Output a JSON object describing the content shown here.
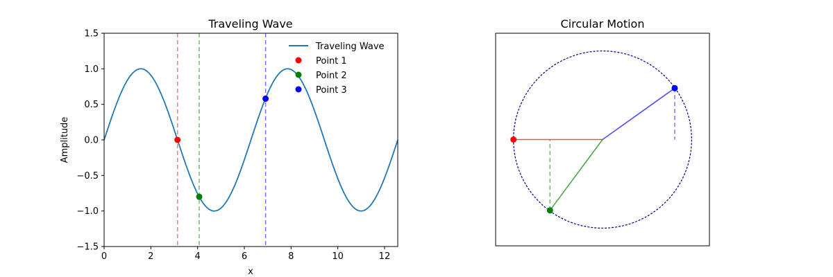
{
  "chart_data": [
    {
      "type": "line",
      "title": "Traveling Wave",
      "xlabel": "x",
      "ylabel": "Amplitude",
      "xlim": [
        0,
        12.566
      ],
      "ylim": [
        -1.5,
        1.5
      ],
      "xticks": [
        0,
        2,
        4,
        6,
        8,
        10,
        12
      ],
      "xtick_labels": [
        "0",
        "2",
        "4",
        "6",
        "8",
        "10",
        "12"
      ],
      "yticks": [
        -1.5,
        -1.0,
        -0.5,
        0.0,
        0.5,
        1.0,
        1.5
      ],
      "ytick_labels": [
        "−1.5",
        "−1.0",
        "−0.5",
        "0.0",
        "0.5",
        "1.0",
        "1.5"
      ],
      "series": [
        {
          "name": "Traveling Wave",
          "function": "sin(x)",
          "x_range": [
            0,
            12.566
          ],
          "color": "#1f77b4"
        }
      ],
      "points": [
        {
          "name": "Point 1",
          "x": 3.14,
          "y": 0.0,
          "color": "#ff0000",
          "vline_color": "#ff0000"
        },
        {
          "name": "Point 2",
          "x": 4.07,
          "y": -0.8,
          "color": "#008000",
          "vline_color": "#008000"
        },
        {
          "name": "Point 3",
          "x": 6.91,
          "y": 0.58,
          "color": "#0000ff",
          "vline_color": "#0000ff"
        }
      ],
      "legend": {
        "position": "top-right",
        "entries": [
          "Traveling Wave",
          "Point 1",
          "Point 2",
          "Point 3"
        ]
      }
    },
    {
      "type": "scatter",
      "title": "Circular Motion",
      "xlim": [
        -1.2,
        1.2
      ],
      "ylim": [
        -1.2,
        1.2
      ],
      "circle": {
        "radius": 1.0,
        "color": "#00008b",
        "style": "dashed"
      },
      "points": [
        {
          "name": "Point 1",
          "angle_rad": 3.14,
          "x": -1.0,
          "y": 0.0,
          "color": "#ff0000",
          "line_color": "#ff0000"
        },
        {
          "name": "Point 2",
          "angle_rad": 4.07,
          "x": -0.59,
          "y": -0.8,
          "color": "#008000",
          "line_color": "#008000"
        },
        {
          "name": "Point 3",
          "angle_rad": 0.63,
          "x": 0.81,
          "y": 0.58,
          "color": "#0000ff",
          "line_color": "#0000ff"
        }
      ]
    }
  ]
}
